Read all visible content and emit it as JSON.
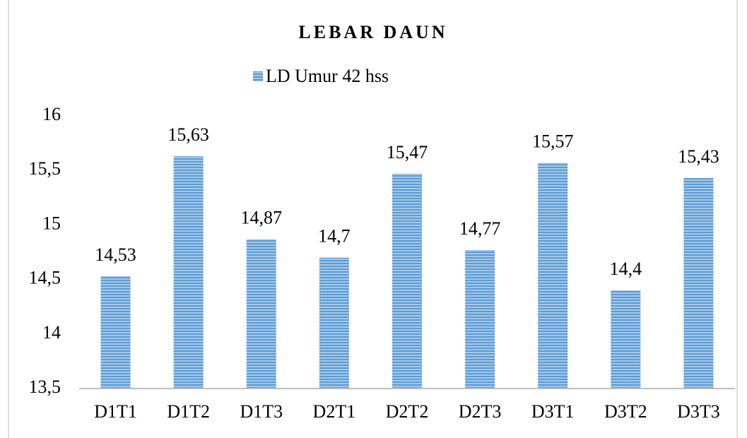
{
  "chart_data": {
    "type": "bar",
    "title": "LEBAR DAUN",
    "categories": [
      "D1T1",
      "D1T2",
      "D1T3",
      "D2T1",
      "D2T2",
      "D2T3",
      "D3T1",
      "D3T2",
      "D3T3"
    ],
    "series": [
      {
        "name": "LD Umur 42 hss",
        "color": "#5b9bd5",
        "values": [
          14.53,
          15.63,
          14.87,
          14.7,
          15.47,
          14.77,
          15.57,
          14.4,
          15.43
        ],
        "value_labels": [
          "14,53",
          "15,63",
          "14,87",
          "14,7",
          "15,47",
          "14,77",
          "15,57",
          "14,4",
          "15,43"
        ]
      }
    ],
    "ylim": [
      13.5,
      16
    ],
    "yticks": [
      {
        "value": 13.5,
        "label": "13,5"
      },
      14,
      {
        "value": 14.5,
        "label": "14,5"
      },
      15,
      {
        "value": 15.5,
        "label": "15,5"
      },
      16
    ],
    "grid": false,
    "legend": "top"
  }
}
